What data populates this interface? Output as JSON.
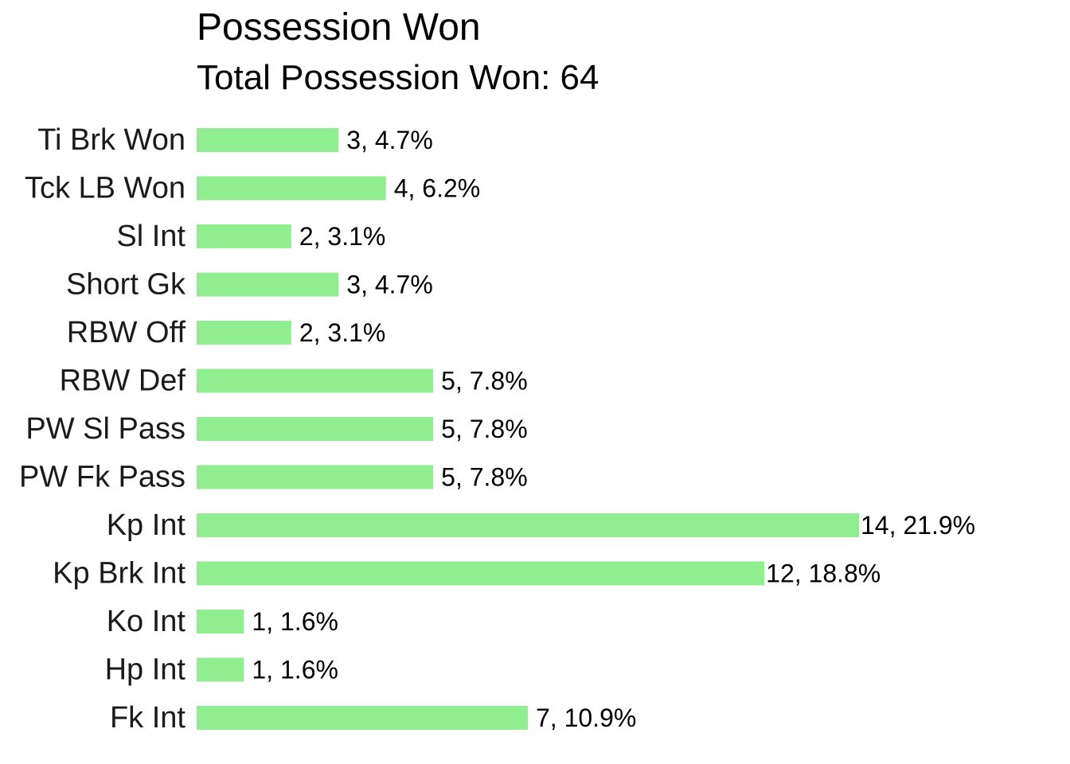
{
  "chart_data": {
    "type": "bar",
    "orientation": "horizontal",
    "title": "Possession Won",
    "subtitle": "Total Possession Won: 64",
    "total": 64,
    "categories": [
      "Ti Brk Won",
      "Tck LB Won",
      "Sl Int",
      "Short Gk",
      "RBW Off",
      "RBW Def",
      "PW Sl Pass",
      "PW Fk Pass",
      "Kp Int",
      "Kp Brk Int",
      "Ko Int",
      "Hp Int",
      "Fk Int"
    ],
    "values": [
      3,
      4,
      2,
      3,
      2,
      5,
      5,
      5,
      14,
      12,
      1,
      1,
      7
    ],
    "data_labels": [
      "3, 4.7%",
      "4, 6.2%",
      "2, 3.1%",
      "3, 4.7%",
      "2, 3.1%",
      "5, 7.8%",
      "5, 7.8%",
      "5, 7.8%",
      "14, 21.9%",
      "12, 18.8%",
      "1, 1.6%",
      "1, 1.6%",
      "7, 10.9%"
    ],
    "bar_color": "#90EE90",
    "xlim": [
      0,
      14
    ],
    "grid": false,
    "legend": "none"
  }
}
